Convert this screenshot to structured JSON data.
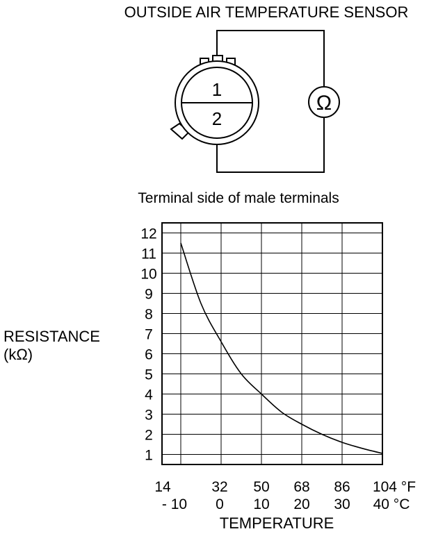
{
  "title": "OUTSIDE AIR TEMPERATURE SENSOR",
  "connector": {
    "pin1": "1",
    "pin2": "2",
    "meter_symbol": "Ω",
    "caption": "Terminal side of male terminals"
  },
  "chart_data": {
    "type": "line",
    "ylabel_line1": "RESISTANCE",
    "ylabel_line2": "(kΩ)",
    "xlabel": "TEMPERATURE",
    "ylim": [
      0,
      12
    ],
    "xlim_c": [
      -10,
      40
    ],
    "y_ticks": [
      "1",
      "2",
      "3",
      "4",
      "5",
      "6",
      "7",
      "8",
      "9",
      "10",
      "11",
      "12"
    ],
    "x_ticks_f": [
      "14",
      "32",
      "50",
      "68",
      "86",
      "104 °F"
    ],
    "x_ticks_c": [
      "- 10",
      "0",
      "10",
      "20",
      "30",
      "40 °C"
    ],
    "grid": true,
    "series": [
      {
        "x_c": [
          -10,
          -5,
          0,
          5,
          10,
          15,
          20,
          25,
          30,
          35,
          40
        ],
        "y_kohm": [
          11.5,
          8.5,
          6.6,
          5.0,
          4.0,
          3.1,
          2.5,
          2.0,
          1.6,
          1.3,
          1.05
        ]
      }
    ]
  }
}
